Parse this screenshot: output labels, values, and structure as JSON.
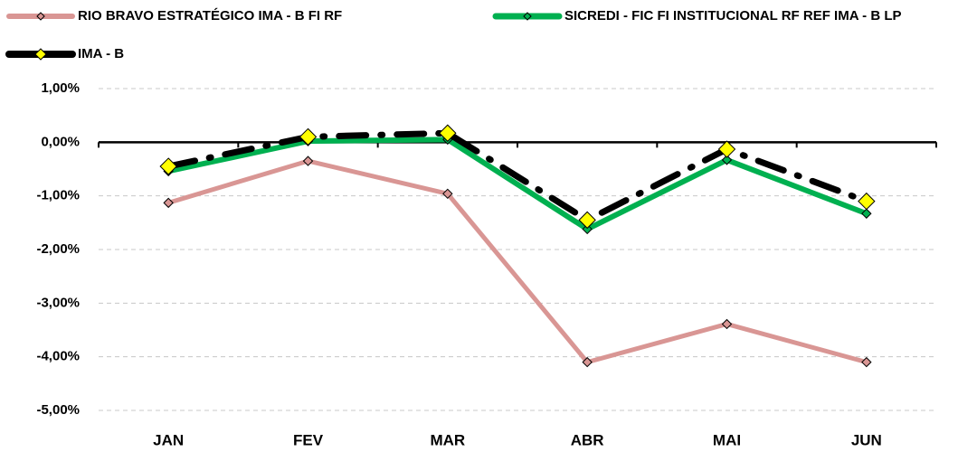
{
  "chart_data": {
    "type": "line",
    "categories": [
      "JAN",
      "FEV",
      "MAR",
      "ABR",
      "MAI",
      "JUN"
    ],
    "series": [
      {
        "name": "RIO BRAVO ESTRATÉGICO IMA - B FI RF",
        "color": "#d99694",
        "values": [
          -1.13,
          -0.35,
          -0.96,
          -4.1,
          -3.39,
          -4.1
        ]
      },
      {
        "name": "SICREDI - FIC FI INSTITUCIONAL RF REF IMA - B LP",
        "color": "#00b050",
        "values": [
          -0.54,
          0.02,
          0.05,
          -1.62,
          -0.33,
          -1.33
        ]
      },
      {
        "name": "IMA - B",
        "color": "#000000",
        "marker_color": "#ffff00",
        "line_style": "dash-dot",
        "values": [
          -0.45,
          0.1,
          0.17,
          -1.45,
          -0.13,
          -1.1
        ]
      }
    ],
    "ylim": [
      -5,
      1
    ],
    "yticks": [
      {
        "value": -5,
        "label": "-5,00%"
      },
      {
        "value": -4,
        "label": "-4,00%"
      },
      {
        "value": -3,
        "label": "-3,00%"
      },
      {
        "value": -2,
        "label": "-2,00%"
      },
      {
        "value": -1,
        "label": "-1,00%"
      },
      {
        "value": 0,
        "label": "0,00%"
      },
      {
        "value": 1,
        "label": "1,00%"
      }
    ],
    "grid": true,
    "legend": "top"
  }
}
